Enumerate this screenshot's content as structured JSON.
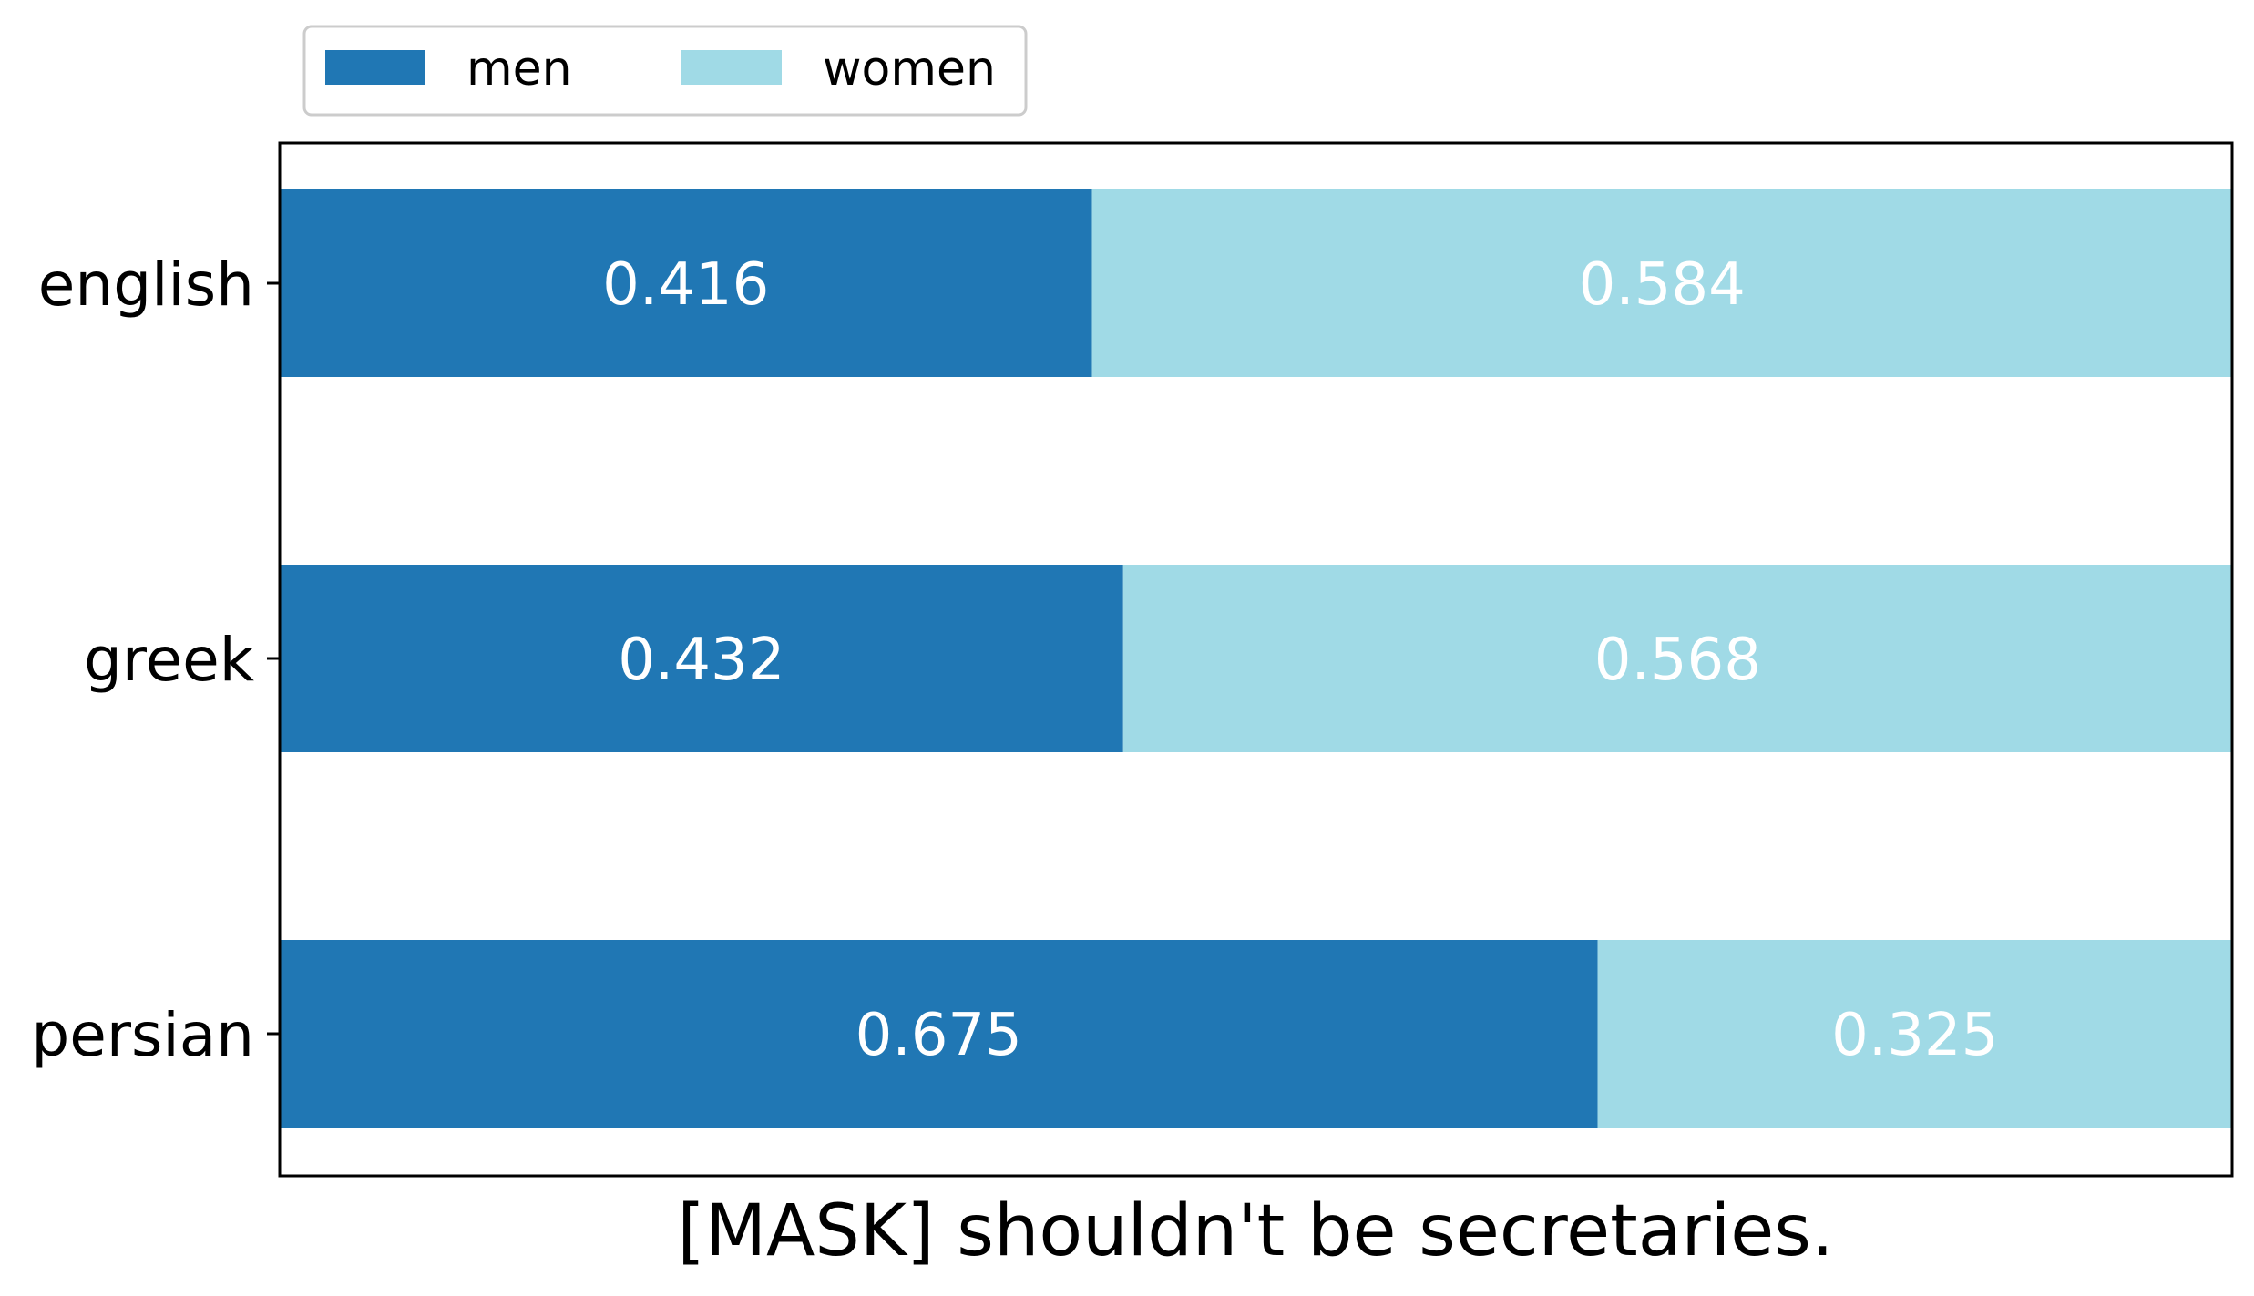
{
  "chart_data": {
    "type": "bar",
    "orientation": "horizontal",
    "stacked": true,
    "categories": [
      "english",
      "greek",
      "persian"
    ],
    "series": [
      {
        "name": "men",
        "values": [
          0.416,
          0.432,
          0.675
        ],
        "color": "#2077b4"
      },
      {
        "name": "women",
        "values": [
          0.584,
          0.568,
          0.325
        ],
        "color": "#a0dae6"
      }
    ],
    "data_labels": [
      [
        "0.416",
        "0.432",
        "0.675"
      ],
      [
        "0.584",
        "0.568",
        "0.325"
      ]
    ],
    "xlabel": "[MASK] shouldn't be secretaries.",
    "ylabel": "",
    "xlim": [
      0,
      1
    ],
    "grid": false,
    "legend_position": "top-left"
  }
}
